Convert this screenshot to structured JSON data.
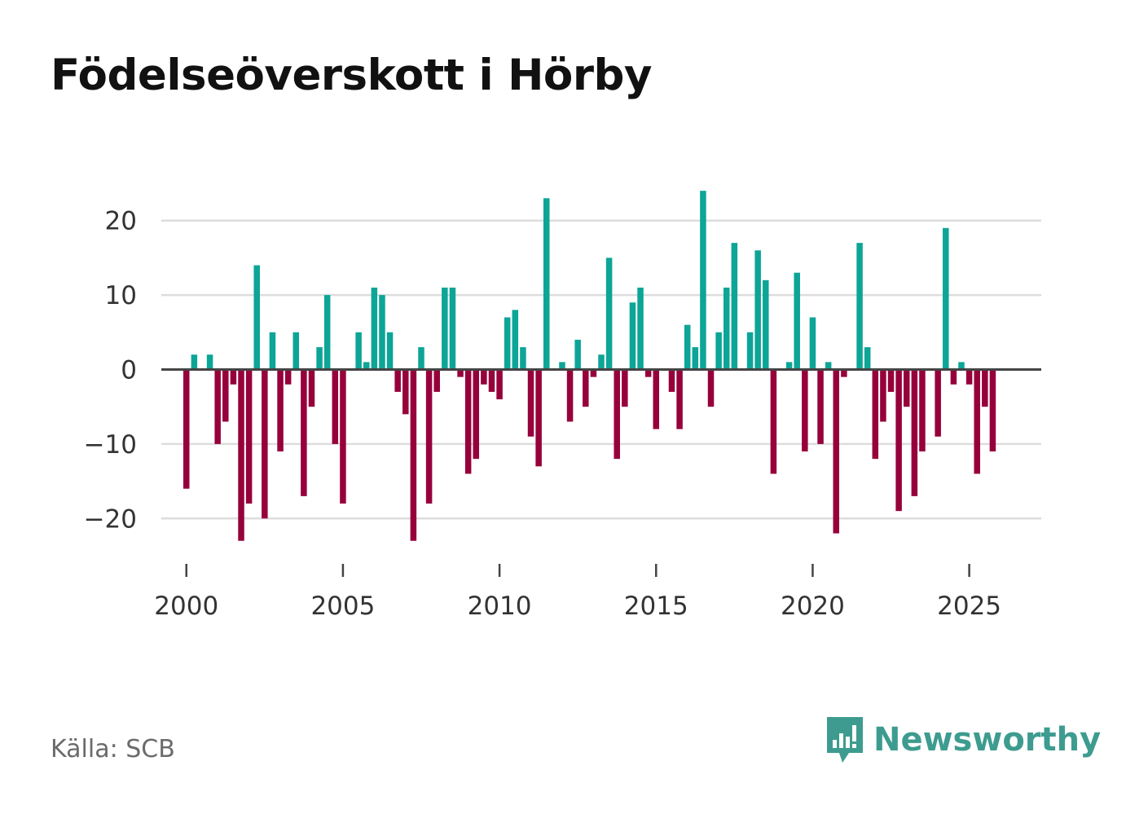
{
  "title": "Födelseöverskott i Hörby",
  "source": "Källa: SCB",
  "brand": {
    "name": "Newsworthy",
    "icon": "newsworthy-logo-icon",
    "color": "#3d9c8f"
  },
  "colors": {
    "positive": "#0ca597",
    "negative": "#96003b",
    "grid": "#dddddd",
    "zero_line": "#444444"
  },
  "chart_data": {
    "type": "bar",
    "title": "Födelseöverskott i Hörby",
    "xlabel": "",
    "ylabel": "",
    "x_ticks": [
      "2000",
      "2005",
      "2010",
      "2015",
      "2020",
      "2025"
    ],
    "y_ticks": [
      "−20",
      "−10",
      "0",
      "10",
      "20"
    ],
    "ylim": [
      -25,
      25
    ],
    "xlim": [
      1999.2,
      2027.3
    ],
    "grid": true,
    "legend": "none",
    "x": [
      2000.0,
      2000.25,
      2000.5,
      2000.75,
      2001.0,
      2001.25,
      2001.5,
      2001.75,
      2002.0,
      2002.25,
      2002.5,
      2002.75,
      2003.0,
      2003.25,
      2003.5,
      2003.75,
      2004.0,
      2004.25,
      2004.5,
      2004.75,
      2005.0,
      2005.25,
      2005.5,
      2005.75,
      2006.0,
      2006.25,
      2006.5,
      2006.75,
      2007.0,
      2007.25,
      2007.5,
      2007.75,
      2008.0,
      2008.25,
      2008.5,
      2008.75,
      2009.0,
      2009.25,
      2009.5,
      2009.75,
      2010.0,
      2010.25,
      2010.5,
      2010.75,
      2011.0,
      2011.25,
      2011.5,
      2011.75,
      2012.0,
      2012.25,
      2012.5,
      2012.75,
      2013.0,
      2013.25,
      2013.5,
      2013.75,
      2014.0,
      2014.25,
      2014.5,
      2014.75,
      2015.0,
      2015.25,
      2015.5,
      2015.75,
      2016.0,
      2016.25,
      2016.5,
      2016.75,
      2017.0,
      2017.25,
      2017.5,
      2017.75,
      2018.0,
      2018.25,
      2018.5,
      2018.75,
      2019.0,
      2019.25,
      2019.5,
      2019.75,
      2020.0,
      2020.25,
      2020.5,
      2020.75,
      2021.0,
      2021.25,
      2021.5,
      2021.75,
      2022.0,
      2022.25,
      2022.5,
      2022.75,
      2023.0,
      2023.25,
      2023.5,
      2023.75,
      2024.0,
      2024.25,
      2024.5,
      2024.75,
      2025.0,
      2025.25,
      2025.5,
      2025.75,
      2026.0
    ],
    "values": [
      -16,
      2,
      0,
      2,
      -10,
      -7,
      -2,
      -23,
      -18,
      14,
      -20,
      5,
      -11,
      -2,
      5,
      -17,
      -5,
      3,
      10,
      -10,
      -18,
      0,
      5,
      1,
      11,
      10,
      5,
      -3,
      -6,
      -23,
      3,
      -18,
      -3,
      11,
      11,
      -1,
      -14,
      -12,
      -2,
      -3,
      -4,
      7,
      8,
      3,
      -9,
      -13,
      23,
      0,
      1,
      -7,
      4,
      -5,
      -1,
      2,
      15,
      -12,
      -5,
      9,
      11,
      -1,
      -8,
      0,
      -3,
      -8,
      6,
      3,
      24,
      -5,
      5,
      11,
      17,
      0,
      5,
      16,
      12,
      -14,
      0,
      1,
      13,
      -11,
      7,
      -10,
      1,
      -22,
      -1,
      0,
      17,
      3,
      -12,
      -7,
      -3,
      -19,
      -5,
      -17,
      -11,
      0,
      -9,
      19,
      -2,
      1,
      -2,
      -14,
      -5,
      -11,
      0
    ]
  }
}
